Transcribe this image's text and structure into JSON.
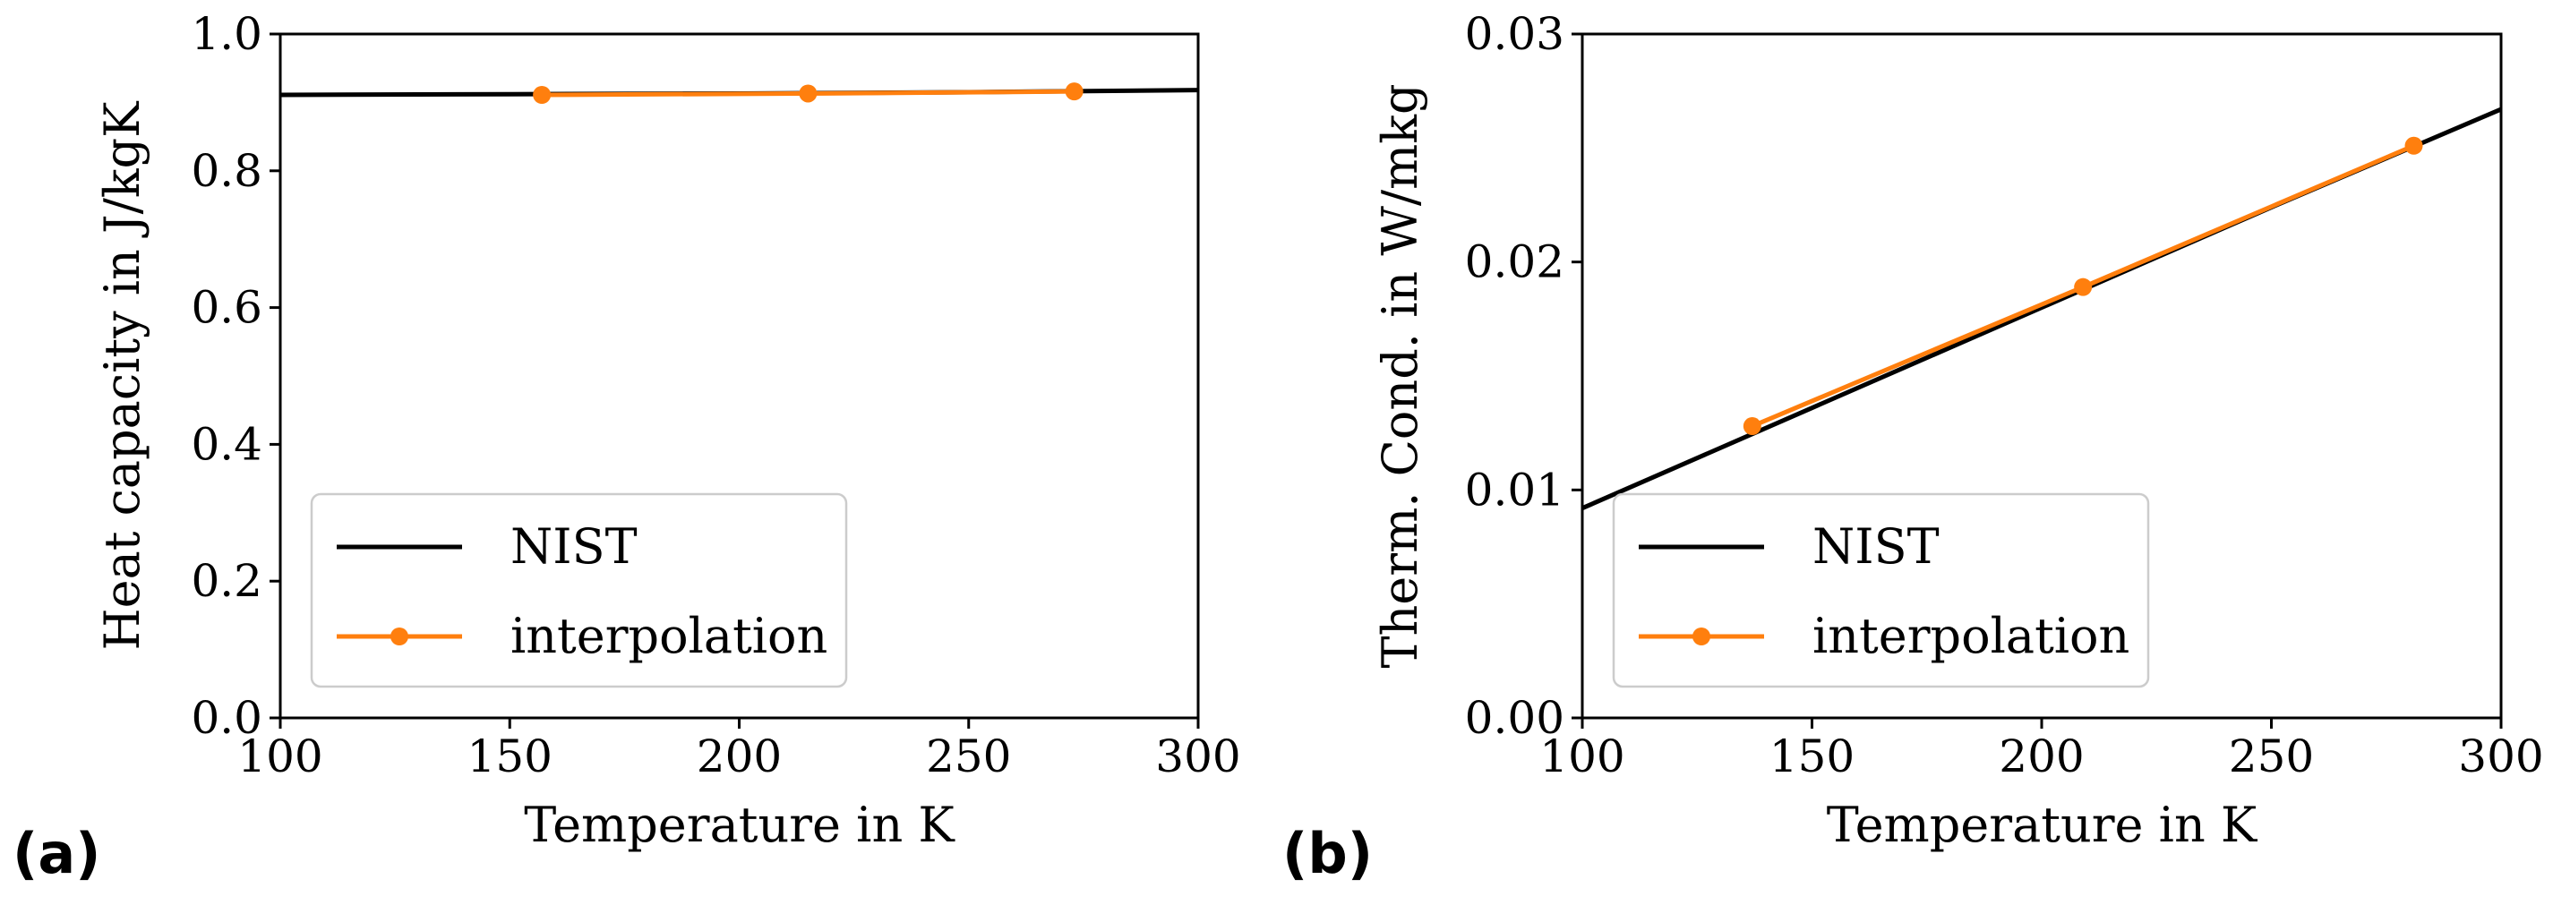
{
  "colors": {
    "nist": "#000000",
    "interp": "#ff7f0e",
    "axis": "#000000"
  },
  "chart_data": [
    {
      "type": "line",
      "panel_label": "(a)",
      "xlabel": "Temperature in K",
      "ylabel": "Heat capacity in J/kgK",
      "xlim": [
        100,
        300
      ],
      "ylim": [
        0.0,
        1.0
      ],
      "xticks": [
        100,
        150,
        200,
        250,
        300
      ],
      "xtick_labels": [
        "100",
        "150",
        "200",
        "250",
        "300"
      ],
      "yticks": [
        0.0,
        0.2,
        0.4,
        0.6,
        0.8,
        1.0
      ],
      "ytick_labels": [
        "0.0",
        "0.2",
        "0.4",
        "0.6",
        "0.8",
        "1.0"
      ],
      "legend_position": "lower-left",
      "series": [
        {
          "name": "NIST",
          "style": "line",
          "x": [
            100,
            150,
            200,
            250,
            300
          ],
          "y": [
            0.911,
            0.912,
            0.913,
            0.915,
            0.918
          ]
        },
        {
          "name": "interpolation",
          "style": "line-marker",
          "x": [
            157,
            215,
            273
          ],
          "y": [
            0.911,
            0.913,
            0.916
          ]
        }
      ]
    },
    {
      "type": "line",
      "panel_label": "(b)",
      "xlabel": "Temperature in K",
      "ylabel": "Therm. Cond. in W/mkg",
      "xlim": [
        100,
        300
      ],
      "ylim": [
        0.0,
        0.03
      ],
      "xticks": [
        100,
        150,
        200,
        250,
        300
      ],
      "xtick_labels": [
        "100",
        "150",
        "200",
        "250",
        "300"
      ],
      "yticks": [
        0.0,
        0.01,
        0.02,
        0.03
      ],
      "ytick_labels": [
        "0.00",
        "0.01",
        "0.02",
        "0.03"
      ],
      "legend_position": "lower-left",
      "series": [
        {
          "name": "NIST",
          "style": "line",
          "x": [
            100,
            150,
            200,
            250,
            300
          ],
          "y": [
            0.0092,
            0.0136,
            0.018,
            0.0224,
            0.0267
          ]
        },
        {
          "name": "interpolation",
          "style": "line-marker",
          "x": [
            137,
            209,
            281
          ],
          "y": [
            0.0128,
            0.0189,
            0.0251
          ]
        }
      ]
    }
  ]
}
